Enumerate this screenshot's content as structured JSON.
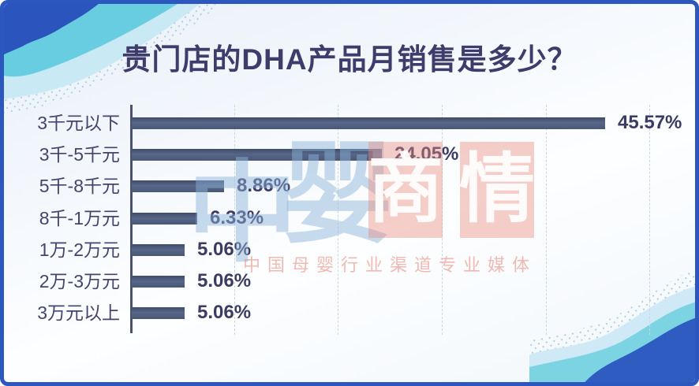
{
  "title": "贵门店的DHA产品月销售是多少？",
  "chart_data": {
    "type": "bar",
    "orientation": "horizontal",
    "title": "贵门店的DHA产品月销售是多少？",
    "categories": [
      "3千元以下",
      "3千-5千元",
      "5千-8千元",
      "8千-1万元",
      "1万-2万元",
      "2万-3万元",
      "3万元以上"
    ],
    "values": [
      45.57,
      24.05,
      8.86,
      6.33,
      5.06,
      5.06,
      5.06
    ],
    "value_labels": [
      "45.57%",
      "24.05%",
      "8.86%",
      "6.33%",
      "5.06%",
      "5.06%",
      "5.06%"
    ],
    "xlabel": "",
    "ylabel": "",
    "xlim": [
      0,
      50
    ],
    "gridline_step_pct": 10,
    "grid": true,
    "legend": false,
    "bar_color": "#4e5c78",
    "axis_color": "#49536e",
    "label_color": "#44446e",
    "value_color": "#3c3b63"
  },
  "watermark": {
    "brand_chars": [
      "中",
      "婴"
    ],
    "block_chars": [
      "商",
      "情"
    ],
    "subtitle": "中国母婴行业渠道专业媒体",
    "accent_red": "#e98c80",
    "accent_blue": "#8cb4da"
  },
  "frame": {
    "border_color": "#2b57be",
    "decoration_dark_blue": "#2b55bd",
    "decoration_cyan": "#68cde0",
    "decoration_light_blue": "#cfe9f6"
  }
}
